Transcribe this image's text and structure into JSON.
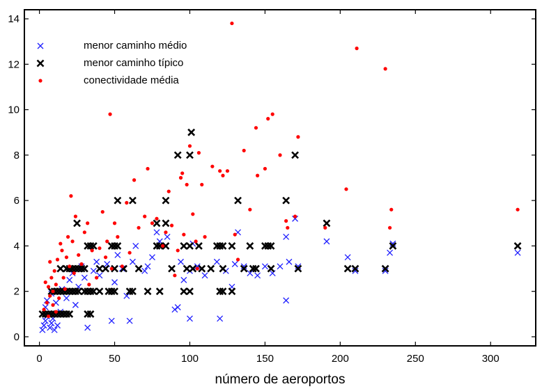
{
  "chart_data": {
    "type": "scatter",
    "title": "",
    "xlabel": "número de aeroportos",
    "ylabel": "",
    "xlim": [
      -10,
      330
    ],
    "ylim": [
      -0.4,
      14.4
    ],
    "x_ticks": [
      0,
      50,
      100,
      150,
      200,
      250,
      300
    ],
    "y_ticks": [
      0,
      2,
      4,
      6,
      8,
      10,
      12,
      14
    ],
    "grid": false,
    "legend_position": "top-left",
    "series": [
      {
        "name": "menor caminho médio",
        "marker": "x",
        "color": "#1f1fff",
        "points": [
          [
            2,
            0.3
          ],
          [
            3,
            0.5
          ],
          [
            4,
            0.7
          ],
          [
            5,
            0.9
          ],
          [
            6,
            1.0
          ],
          [
            4,
            1.3
          ],
          [
            7,
            0.4
          ],
          [
            8,
            0.6
          ],
          [
            9,
            0.8
          ],
          [
            10,
            0.3
          ],
          [
            12,
            0.5
          ],
          [
            14,
            1.1
          ],
          [
            5,
            1.6
          ],
          [
            8,
            1.9
          ],
          [
            11,
            1.5
          ],
          [
            15,
            2.1
          ],
          [
            18,
            1.7
          ],
          [
            20,
            2.5
          ],
          [
            22,
            2.8
          ],
          [
            24,
            1.4
          ],
          [
            26,
            2.2
          ],
          [
            28,
            3.1
          ],
          [
            30,
            2.6
          ],
          [
            32,
            0.4
          ],
          [
            34,
            1.0
          ],
          [
            36,
            2.9
          ],
          [
            38,
            3.3
          ],
          [
            40,
            2.7
          ],
          [
            45,
            3.2
          ],
          [
            48,
            0.7
          ],
          [
            50,
            2.4
          ],
          [
            52,
            3.6
          ],
          [
            55,
            3.0
          ],
          [
            58,
            1.8
          ],
          [
            60,
            0.7
          ],
          [
            62,
            3.3
          ],
          [
            64,
            4.0
          ],
          [
            70,
            2.9
          ],
          [
            72,
            3.1
          ],
          [
            75,
            3.5
          ],
          [
            78,
            4.6
          ],
          [
            80,
            4.2
          ],
          [
            85,
            4.4
          ],
          [
            88,
            3.0
          ],
          [
            90,
            1.2
          ],
          [
            92,
            1.3
          ],
          [
            94,
            3.3
          ],
          [
            96,
            2.5
          ],
          [
            100,
            0.8
          ],
          [
            100,
            2.9
          ],
          [
            102,
            4.1
          ],
          [
            105,
            3.1
          ],
          [
            110,
            2.7
          ],
          [
            118,
            3.3
          ],
          [
            120,
            0.8
          ],
          [
            124,
            2.9
          ],
          [
            128,
            2.2
          ],
          [
            130,
            3.2
          ],
          [
            132,
            4.6
          ],
          [
            136,
            3.1
          ],
          [
            140,
            2.8
          ],
          [
            145,
            2.7
          ],
          [
            150,
            3.1
          ],
          [
            155,
            2.8
          ],
          [
            160,
            3.1
          ],
          [
            164,
            1.6
          ],
          [
            164,
            4.4
          ],
          [
            166,
            3.3
          ],
          [
            170,
            5.2
          ],
          [
            172,
            3.1
          ],
          [
            191,
            4.2
          ],
          [
            205,
            3.5
          ],
          [
            210,
            2.9
          ],
          [
            230,
            2.9
          ],
          [
            233,
            3.7
          ],
          [
            235,
            4.1
          ],
          [
            318,
            3.7
          ]
        ]
      },
      {
        "name": "menor caminho típico",
        "marker": "x",
        "color": "#000000",
        "points": [
          [
            2,
            1
          ],
          [
            4,
            1
          ],
          [
            6,
            1
          ],
          [
            8,
            1
          ],
          [
            10,
            1
          ],
          [
            12,
            1
          ],
          [
            14,
            1
          ],
          [
            16,
            1
          ],
          [
            18,
            1
          ],
          [
            20,
            1
          ],
          [
            8,
            2
          ],
          [
            10,
            2
          ],
          [
            12,
            2
          ],
          [
            14,
            2
          ],
          [
            16,
            2
          ],
          [
            18,
            2
          ],
          [
            20,
            2
          ],
          [
            22,
            2
          ],
          [
            24,
            2
          ],
          [
            26,
            2
          ],
          [
            14,
            3
          ],
          [
            18,
            3
          ],
          [
            20,
            3
          ],
          [
            22,
            3
          ],
          [
            24,
            3
          ],
          [
            26,
            3
          ],
          [
            28,
            3
          ],
          [
            30,
            3
          ],
          [
            32,
            1
          ],
          [
            34,
            1
          ],
          [
            30,
            2
          ],
          [
            32,
            2
          ],
          [
            34,
            2
          ],
          [
            36,
            2
          ],
          [
            40,
            2
          ],
          [
            46,
            2
          ],
          [
            48,
            2
          ],
          [
            50,
            2
          ],
          [
            40,
            3
          ],
          [
            44,
            3
          ],
          [
            50,
            3
          ],
          [
            56,
            3
          ],
          [
            60,
            2
          ],
          [
            62,
            2
          ],
          [
            66,
            3
          ],
          [
            72,
            2
          ],
          [
            80,
            2
          ],
          [
            88,
            3
          ],
          [
            96,
            2
          ],
          [
            100,
            2
          ],
          [
            98,
            3
          ],
          [
            102,
            3
          ],
          [
            108,
            3
          ],
          [
            114,
            3
          ],
          [
            32,
            4
          ],
          [
            34,
            4
          ],
          [
            36,
            4
          ],
          [
            48,
            4
          ],
          [
            50,
            4
          ],
          [
            52,
            4
          ],
          [
            78,
            4
          ],
          [
            80,
            4
          ],
          [
            84,
            4
          ],
          [
            96,
            4
          ],
          [
            100,
            4
          ],
          [
            106,
            4
          ],
          [
            118,
            4
          ],
          [
            120,
            4
          ],
          [
            122,
            4
          ],
          [
            128,
            4
          ],
          [
            140,
            4
          ],
          [
            150,
            4
          ],
          [
            152,
            4
          ],
          [
            154,
            4
          ],
          [
            25,
            5
          ],
          [
            78,
            5
          ],
          [
            84,
            5
          ],
          [
            52,
            6
          ],
          [
            62,
            6
          ],
          [
            84,
            6
          ],
          [
            132,
            6
          ],
          [
            164,
            6
          ],
          [
            92,
            8
          ],
          [
            100,
            8
          ],
          [
            170,
            8
          ],
          [
            101,
            9
          ],
          [
            120,
            2
          ],
          [
            122,
            2
          ],
          [
            128,
            2
          ],
          [
            122,
            3
          ],
          [
            136,
            3
          ],
          [
            142,
            3
          ],
          [
            144,
            3
          ],
          [
            154,
            3
          ],
          [
            172,
            3
          ],
          [
            191,
            5
          ],
          [
            205,
            3
          ],
          [
            210,
            3
          ],
          [
            230,
            3
          ],
          [
            235,
            4
          ],
          [
            318,
            4
          ]
        ]
      },
      {
        "name": "conectividade média",
        "marker": "dot",
        "color": "#ff0000",
        "points": [
          [
            3,
            1.2
          ],
          [
            5,
            1.5
          ],
          [
            6,
            2.2
          ],
          [
            7,
            1.8
          ],
          [
            8,
            2.6
          ],
          [
            9,
            1.4
          ],
          [
            10,
            2.9
          ],
          [
            11,
            2.3
          ],
          [
            12,
            3.4
          ],
          [
            13,
            1.7
          ],
          [
            14,
            4.1
          ],
          [
            15,
            3.8
          ],
          [
            16,
            2.6
          ],
          [
            18,
            3.5
          ],
          [
            20,
            3.1
          ],
          [
            21,
            6.2
          ],
          [
            22,
            4.2
          ],
          [
            24,
            5.3
          ],
          [
            26,
            3.6
          ],
          [
            28,
            3.2
          ],
          [
            30,
            4.6
          ],
          [
            32,
            5.0
          ],
          [
            35,
            3.8
          ],
          [
            38,
            2.6
          ],
          [
            40,
            3.9
          ],
          [
            42,
            5.5
          ],
          [
            45,
            4.2
          ],
          [
            47,
            9.8
          ],
          [
            48,
            3.0
          ],
          [
            50,
            5.0
          ],
          [
            52,
            4.4
          ],
          [
            55,
            3.1
          ],
          [
            58,
            5.9
          ],
          [
            60,
            3.7
          ],
          [
            63,
            6.9
          ],
          [
            66,
            4.8
          ],
          [
            70,
            5.3
          ],
          [
            72,
            7.4
          ],
          [
            75,
            5.0
          ],
          [
            78,
            5.2
          ],
          [
            82,
            4.0
          ],
          [
            84,
            4.6
          ],
          [
            86,
            6.4
          ],
          [
            88,
            4.9
          ],
          [
            90,
            2.7
          ],
          [
            92,
            3.8
          ],
          [
            94,
            7.0
          ],
          [
            95,
            7.2
          ],
          [
            96,
            4.5
          ],
          [
            98,
            6.7
          ],
          [
            100,
            8.4
          ],
          [
            102,
            5.4
          ],
          [
            104,
            4.2
          ],
          [
            105,
            3.0
          ],
          [
            106,
            8.1
          ],
          [
            108,
            6.7
          ],
          [
            110,
            4.4
          ],
          [
            115,
            7.5
          ],
          [
            120,
            7.3
          ],
          [
            122,
            7.1
          ],
          [
            125,
            7.3
          ],
          [
            128,
            13.8
          ],
          [
            130,
            4.5
          ],
          [
            132,
            3.4
          ],
          [
            136,
            8.2
          ],
          [
            140,
            5.6
          ],
          [
            144,
            9.2
          ],
          [
            145,
            7.1
          ],
          [
            150,
            7.4
          ],
          [
            152,
            9.6
          ],
          [
            155,
            9.8
          ],
          [
            160,
            8.0
          ],
          [
            164,
            5.1
          ],
          [
            165,
            4.8
          ],
          [
            170,
            5.3
          ],
          [
            172,
            8.8
          ],
          [
            190,
            4.8
          ],
          [
            204,
            6.5
          ],
          [
            211,
            12.7
          ],
          [
            230,
            11.8
          ],
          [
            233,
            4.8
          ],
          [
            234,
            5.6
          ],
          [
            318,
            5.6
          ],
          [
            4,
            2.4
          ],
          [
            6,
            0.9
          ],
          [
            7,
            3.3
          ],
          [
            9,
            2.0
          ],
          [
            11,
            1.1
          ],
          [
            17,
            2.1
          ],
          [
            19,
            4.4
          ],
          [
            23,
            2.8
          ],
          [
            33,
            2.3
          ],
          [
            44,
            3.5
          ]
        ]
      }
    ]
  }
}
